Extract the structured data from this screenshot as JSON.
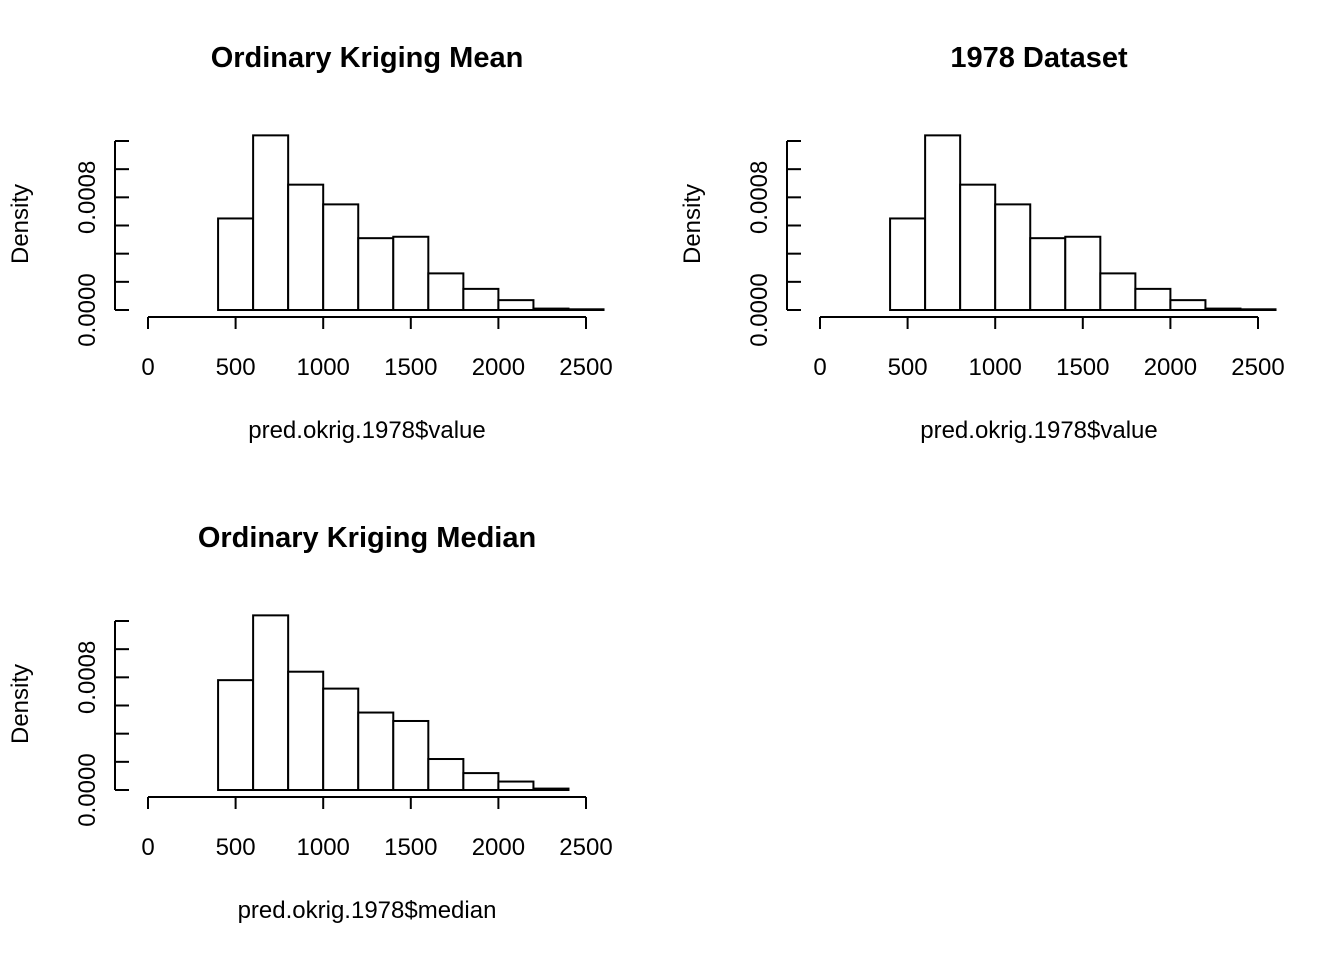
{
  "chart_data": [
    {
      "type": "bar",
      "title": "Ordinary Kriging Mean",
      "xlabel": "pred.okrig.1978$value",
      "ylabel": "Density",
      "bin_edges": [
        400,
        600,
        800,
        1000,
        1200,
        1400,
        1600,
        1800,
        2000,
        2200,
        2400,
        2600
      ],
      "values": [
        0.00065,
        0.00124,
        0.00089,
        0.00075,
        0.00051,
        0.00052,
        0.00026,
        0.00015,
        7e-05,
        1e-05,
        5e-06
      ],
      "xlim": [
        0,
        2500
      ],
      "ylim": [
        0,
        0.0012
      ],
      "x_ticks": [
        0,
        500,
        1000,
        1500,
        2000,
        2500
      ],
      "y_tick_labels": [
        "0.0000",
        "0.0008"
      ],
      "grid": false
    },
    {
      "type": "bar",
      "title": "1978 Dataset",
      "xlabel": "pred.okrig.1978$value",
      "ylabel": "Density",
      "bin_edges": [
        400,
        600,
        800,
        1000,
        1200,
        1400,
        1600,
        1800,
        2000,
        2200,
        2400,
        2600
      ],
      "values": [
        0.00065,
        0.00124,
        0.00089,
        0.00075,
        0.00051,
        0.00052,
        0.00026,
        0.00015,
        7e-05,
        1e-05,
        5e-06
      ],
      "xlim": [
        0,
        2500
      ],
      "ylim": [
        0,
        0.0012
      ],
      "x_ticks": [
        0,
        500,
        1000,
        1500,
        2000,
        2500
      ],
      "y_tick_labels": [
        "0.0000",
        "0.0008"
      ],
      "grid": false
    },
    {
      "type": "bar",
      "title": "Ordinary Kriging Median",
      "xlabel": "pred.okrig.1978$median",
      "ylabel": "Density",
      "bin_edges": [
        400,
        600,
        800,
        1000,
        1200,
        1400,
        1600,
        1800,
        2000,
        2200,
        2400
      ],
      "values": [
        0.00078,
        0.00124,
        0.00084,
        0.00072,
        0.00055,
        0.00049,
        0.00022,
        0.00012,
        6e-05,
        1e-05
      ],
      "xlim": [
        0,
        2500
      ],
      "ylim": [
        0,
        0.0012
      ],
      "x_ticks": [
        0,
        500,
        1000,
        1500,
        2000,
        2500
      ],
      "y_tick_labels": [
        "0.0000",
        "0.0008"
      ],
      "grid": false
    }
  ]
}
